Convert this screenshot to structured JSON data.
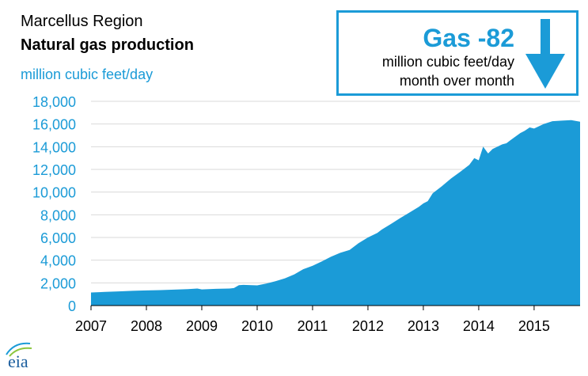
{
  "header": {
    "region": "Marcellus Region",
    "title": "Natural gas production",
    "unit": "million cubic feet/day"
  },
  "callout": {
    "value_text": "Gas -82",
    "unit_line": "million cubic feet/day",
    "period_line": "month over month",
    "arrow_icon": "down-arrow-icon"
  },
  "logo": {
    "text": "eia",
    "icon": "eia-logo-icon"
  },
  "colors": {
    "accent": "#1b9bd7",
    "grid": "#d9d9d9",
    "text": "#000000"
  },
  "chart_data": {
    "type": "area",
    "title": "Natural gas production",
    "ylabel": "million cubic feet/day",
    "xlabel": "",
    "x_tick_labels": [
      "2007",
      "2008",
      "2009",
      "2010",
      "2011",
      "2012",
      "2013",
      "2014",
      "2015"
    ],
    "y_tick_labels": [
      "0",
      "2,000",
      "4,000",
      "6,000",
      "8,000",
      "10,000",
      "12,000",
      "14,000",
      "16,000",
      "18,000"
    ],
    "y_ticks": [
      0,
      2000,
      4000,
      6000,
      8000,
      10000,
      12000,
      14000,
      16000,
      18000
    ],
    "ylim": [
      0,
      18000
    ],
    "xlim": [
      2007.0,
      2015.83
    ],
    "grid": true,
    "series": [
      {
        "name": "Natural gas production",
        "x": [
          2007.0,
          2007.25,
          2007.5,
          2007.75,
          2008.0,
          2008.25,
          2008.5,
          2008.75,
          2008.92,
          2009.0,
          2009.25,
          2009.5,
          2009.58,
          2009.67,
          2009.75,
          2010.0,
          2010.17,
          2010.33,
          2010.5,
          2010.67,
          2010.83,
          2011.0,
          2011.17,
          2011.33,
          2011.5,
          2011.67,
          2011.83,
          2012.0,
          2012.17,
          2012.25,
          2012.42,
          2012.58,
          2012.75,
          2012.92,
          2013.0,
          2013.08,
          2013.17,
          2013.33,
          2013.5,
          2013.67,
          2013.83,
          2013.92,
          2014.0,
          2014.08,
          2014.17,
          2014.25,
          2014.42,
          2014.5,
          2014.58,
          2014.75,
          2014.83,
          2014.92,
          2015.0,
          2015.17,
          2015.33,
          2015.5,
          2015.67,
          2015.83
        ],
        "values": [
          1150,
          1200,
          1250,
          1300,
          1330,
          1360,
          1400,
          1450,
          1500,
          1420,
          1470,
          1500,
          1540,
          1800,
          1820,
          1780,
          1950,
          2150,
          2400,
          2750,
          3200,
          3500,
          3900,
          4300,
          4650,
          4900,
          5500,
          6000,
          6400,
          6700,
          7200,
          7700,
          8200,
          8700,
          9000,
          9200,
          9900,
          10500,
          11200,
          11800,
          12400,
          13000,
          12800,
          14000,
          13400,
          13800,
          14200,
          14300,
          14600,
          15200,
          15400,
          15700,
          15600,
          16000,
          16250,
          16300,
          16350,
          16200
        ]
      }
    ]
  }
}
